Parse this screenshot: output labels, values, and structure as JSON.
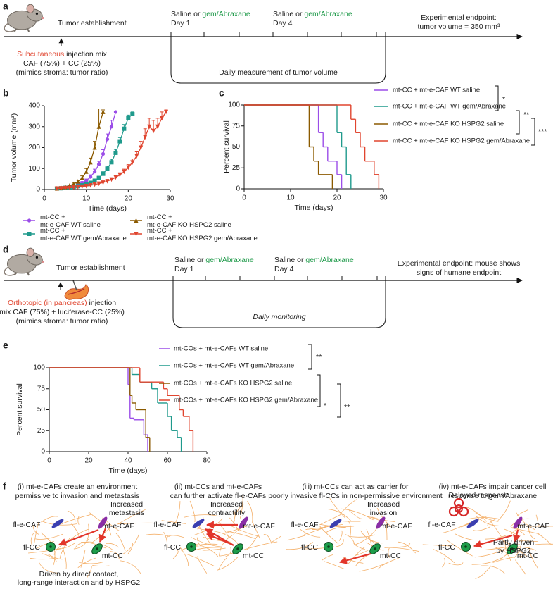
{
  "panel_labels": [
    "a",
    "b",
    "c",
    "d",
    "e",
    "f"
  ],
  "timeline_a": {
    "establishment": "Tumor establishment",
    "injection": {
      "route": "Subcutaneous",
      "rest": "injection mix",
      "lines": [
        "CAF (75%) + CC (25%)",
        "(mimics stroma: tumor ratio)"
      ]
    },
    "treatments": [
      {
        "saline": "Saline or",
        "drug": "gem/Abraxane",
        "day": "Day 1"
      },
      {
        "saline": "Saline or",
        "drug": "gem/Abraxane",
        "day": "Day 4"
      }
    ],
    "endpoint": [
      "Experimental endpoint:",
      "tumor volume = 350 mm³"
    ],
    "loop": "Daily measurement of tumor volume"
  },
  "chart_data": [
    {
      "type": "line",
      "xlabel": "Time (days)",
      "ylabel": "Tumor volume (mm³)",
      "xlim": [
        0,
        30
      ],
      "ylim": [
        0,
        400
      ],
      "xticks": [
        0,
        10,
        20,
        30
      ],
      "yticks": [
        0,
        100,
        200,
        300,
        400
      ],
      "series": [
        {
          "name": "mt-CC + mt-e-CAF WT saline",
          "color": "#9b4de8",
          "marker": "circle",
          "x": [
            3,
            4,
            5,
            6,
            7,
            8,
            9,
            10,
            11,
            12,
            13,
            14,
            15,
            16,
            17
          ],
          "values": [
            5,
            7,
            10,
            14,
            18,
            24,
            32,
            42,
            60,
            85,
            120,
            170,
            240,
            300,
            370
          ],
          "errors": [
            2,
            2,
            3,
            3,
            4,
            5,
            6,
            8,
            10,
            12,
            15,
            20,
            25,
            30,
            5
          ]
        },
        {
          "name": "mt-CC + mt-e-CAF WT gem/Abraxane",
          "color": "#1f9a8c",
          "marker": "square",
          "x": [
            3,
            4,
            5,
            6,
            7,
            8,
            9,
            10,
            11,
            12,
            13,
            14,
            15,
            16,
            17,
            18,
            19,
            20,
            21
          ],
          "values": [
            5,
            6,
            8,
            10,
            13,
            16,
            20,
            25,
            32,
            42,
            55,
            75,
            100,
            130,
            175,
            230,
            290,
            340,
            360
          ],
          "errors": [
            2,
            2,
            2,
            3,
            3,
            4,
            4,
            5,
            6,
            7,
            8,
            10,
            12,
            14,
            16,
            18,
            20,
            15,
            10
          ]
        },
        {
          "name": "mt-CC + mt-e-CAF KO HSPG2 saline",
          "color": "#8b5a00",
          "marker": "triangle-up",
          "x": [
            3,
            4,
            5,
            6,
            7,
            8,
            9,
            10,
            11,
            12,
            13,
            14
          ],
          "values": [
            5,
            8,
            12,
            18,
            26,
            38,
            55,
            85,
            130,
            200,
            300,
            370
          ],
          "errors": [
            2,
            2,
            3,
            4,
            5,
            7,
            10,
            15,
            20,
            30,
            85,
            10
          ]
        },
        {
          "name": "mt-CC + mt-e-CAF KO HSPG2 gem/Abraxane",
          "color": "#e0452f",
          "marker": "triangle-down",
          "x": [
            3,
            4,
            5,
            6,
            7,
            8,
            9,
            10,
            11,
            12,
            13,
            14,
            15,
            16,
            17,
            18,
            19,
            20,
            21,
            22,
            23,
            24,
            25,
            26,
            27,
            28,
            29
          ],
          "values": [
            5,
            6,
            7,
            8,
            10,
            12,
            14,
            17,
            20,
            24,
            28,
            33,
            40,
            48,
            58,
            70,
            85,
            105,
            130,
            160,
            200,
            250,
            300,
            280,
            300,
            340,
            370
          ],
          "errors": [
            2,
            2,
            2,
            2,
            3,
            3,
            3,
            4,
            4,
            5,
            5,
            6,
            7,
            8,
            9,
            10,
            12,
            14,
            16,
            20,
            30,
            40,
            40,
            50,
            40,
            30,
            10
          ]
        }
      ]
    },
    {
      "type": "step",
      "xlabel": "Time (days)",
      "ylabel": "Percent survival",
      "xlim": [
        0,
        30
      ],
      "ylim": [
        0,
        100
      ],
      "xticks": [
        0,
        10,
        20,
        30
      ],
      "yticks": [
        0,
        25,
        50,
        75,
        100
      ],
      "significance": [
        "*",
        "**",
        "***"
      ],
      "series": [
        {
          "name": "mt-CC + mt-e-CAF WT saline",
          "color": "#9b4de8",
          "x": [
            0,
            16,
            17,
            18,
            20,
            21
          ],
          "values": [
            100,
            67,
            50,
            33,
            17,
            0
          ]
        },
        {
          "name": "mt-CC + mt-e-CAF WT gem/Abraxane",
          "color": "#1f9a8c",
          "x": [
            0,
            20,
            21,
            22,
            23
          ],
          "values": [
            100,
            67,
            50,
            17,
            0
          ]
        },
        {
          "name": "mt-CC + mt-e-CAF KO HSPG2 saline",
          "color": "#8b5a00",
          "x": [
            0,
            14,
            15,
            16,
            19
          ],
          "values": [
            100,
            50,
            33,
            17,
            0
          ]
        },
        {
          "name": "mt-CC + mt-e-CAF KO HSPG2 gem/Abraxane",
          "color": "#e0452f",
          "x": [
            0,
            23,
            24,
            25,
            26,
            28,
            29
          ],
          "values": [
            100,
            83,
            67,
            50,
            33,
            17,
            0
          ]
        }
      ]
    },
    {
      "type": "step",
      "xlabel": "Time (days)",
      "ylabel": "Percent survival",
      "xlim": [
        0,
        80
      ],
      "ylim": [
        0,
        100
      ],
      "xticks": [
        0,
        20,
        40,
        60,
        80
      ],
      "yticks": [
        0,
        25,
        50,
        75,
        100
      ],
      "significance": [
        "**",
        "*",
        "**"
      ],
      "series": [
        {
          "name": "mt-COs + mt-e-CAFs WT saline",
          "color": "#9b4de8",
          "x": [
            0,
            40,
            41,
            43,
            48,
            50
          ],
          "values": [
            100,
            80,
            40,
            38,
            20,
            0
          ]
        },
        {
          "name": "mt-COs + mt-e-CAFs WT gem/Abraxane",
          "color": "#1f9a8c",
          "x": [
            0,
            42,
            46,
            52,
            55,
            60,
            62,
            65,
            67
          ],
          "values": [
            100,
            92,
            83,
            75,
            58,
            42,
            25,
            17,
            0
          ]
        },
        {
          "name": "mt-COs + mt-e-CAFs KO HSPG2 saline",
          "color": "#8b5a00",
          "x": [
            0,
            41,
            42,
            44,
            49,
            51
          ],
          "values": [
            100,
            67,
            58,
            50,
            17,
            0
          ]
        },
        {
          "name": "mt-COs + mt-e-CAFs KO HSPG2 gem/Abraxane",
          "color": "#e0452f",
          "x": [
            0,
            46,
            58,
            60,
            66,
            68,
            71,
            73
          ],
          "values": [
            100,
            83,
            75,
            67,
            50,
            42,
            25,
            0
          ]
        }
      ]
    }
  ],
  "timeline_d": {
    "establishment": "Tumor establishment",
    "injection": {
      "route": "Orthotopic (in pancreas)",
      "rest": "injection",
      "lines": [
        "mix CAF (75%) + luciferase-CC (25%)",
        "(mimics stroma: tumor ratio)"
      ]
    },
    "treatments": [
      {
        "saline": "Saline or",
        "drug": "gem/Abraxane",
        "day": "Day 1"
      },
      {
        "saline": "Saline or",
        "drug": "gem/Abraxane",
        "day": "Day 4"
      }
    ],
    "endpoint": [
      "Experimental endpoint: mouse shows",
      "signs of humane endpoint"
    ],
    "loop": "Daily monitoring"
  },
  "mechanisms": [
    {
      "title": [
        "(i) mt-e-CAFs create an environment",
        "permissive to invasion and metastasis"
      ],
      "effect": [
        "Increased",
        "metastasis"
      ],
      "cells": [
        "fl-e-CAF",
        "mt-e-CAF",
        "fl-CC",
        "mt-CC"
      ],
      "note": [
        "Driven by direct contact,",
        "long-range interaction and by HSPG2"
      ]
    },
    {
      "title": [
        "(ii) mt-CCs and mt-e-CAFs",
        "can further activate fl-e-CAFs"
      ],
      "effect": [
        "Increased",
        "contractility"
      ],
      "cells": [
        "fl-e-CAF",
        "mt-e-CAF",
        "fl-CC",
        "mt-CC"
      ]
    },
    {
      "title": [
        "(iii) mt-CCs can act as carrier for",
        "poorly invasive fl-CCs in non-permissive environment"
      ],
      "effect": [
        "Increased",
        "invasion"
      ],
      "cells": [
        "fl-e-CAF",
        "mt-e-CAF",
        "fl-CC",
        "mt-CC"
      ]
    },
    {
      "title": [
        "(iv) mt-e-CAFs impair cancer cell",
        "response to gem/Abraxane"
      ],
      "effect": [
        "Delayed response"
      ],
      "cells": [
        "fl-e-CAF",
        "mt-e-CAF",
        "fl-CC",
        "mt-CC"
      ],
      "note": [
        "Partly driven",
        "by HSPG2"
      ]
    }
  ]
}
